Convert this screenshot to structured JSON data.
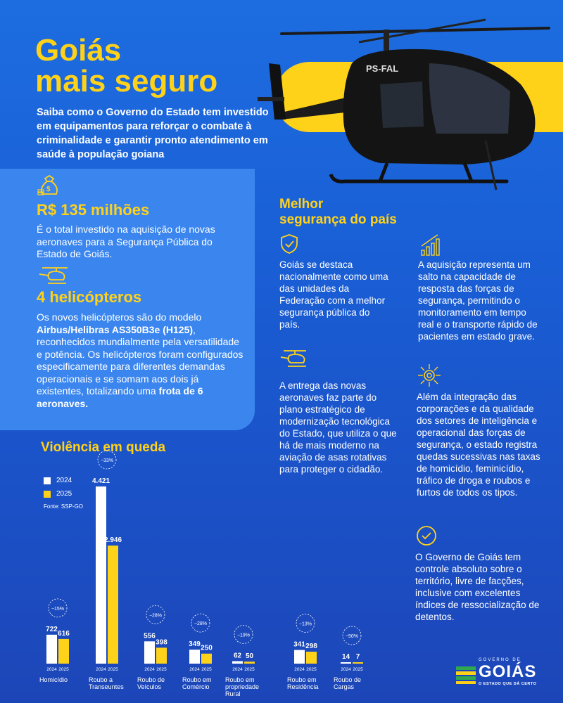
{
  "header": {
    "title_line1": "Goiás",
    "title_line2": "mais seguro",
    "subtitle": "Saiba como o Governo do Estado tem investido em equipamentos para reforçar o combate à criminalidade e garantir pronto atendimento em saúde à população goiana",
    "helicopter_registration": "PS-FAL"
  },
  "investment": {
    "value": "R$ 135 milhões",
    "text": "É o total investido na aquisição de novas aeronaves para a Segurança Pública do Estado de Goiás."
  },
  "helicopters": {
    "title": "4 helicópteros",
    "text_part1": "Os novos helicópteros são do modelo ",
    "model": "Airbus/Helibras AS350B3e (H125)",
    "text_part2": ", reconhecidos mundialmente pela versatilidade e potência. Os helicópteros foram configurados especificamente para diferentes demandas operacionais e se somam aos dois já existentes, totalizando uma ",
    "fleet": "frota de 6 aeronaves."
  },
  "security_section": {
    "title_line1": "Melhor",
    "title_line2": "segurança do país",
    "item1": "Goiás se destaca nacionalmente como uma das unidades da Federação com a melhor segurança pública do país.",
    "item2": "A aquisição representa um salto na capacidade de resposta das forças de segurança, permitindo o monitoramento em tempo real e o transporte rápido de pacientes em estado grave.",
    "item3": "A entrega das novas aeronaves faz parte do plano estratégico de modernização tecnológica do Estado, que utiliza o que há de mais moderno na aviação de asas rotativas para proteger o cidadão.",
    "item4": "Além da integração das corporações e da qualidade dos setores de inteligência e operacional das forças de segurança, o estado registra quedas sucessivas nas  taxas de homicídio, feminicídio, tráfico de droga e roubos e furtos de todos os tipos.",
    "item5": "O Governo de Goiás tem controle absoluto sobre o território, livre de facções, inclusive com excelentes índices de ressocialização de detentos."
  },
  "chart_data": {
    "type": "bar",
    "title": "Violência em queda",
    "source": "Fonte: SSP-GO",
    "categories": [
      "Homicídio",
      "Roubo a Transeuntes",
      "Roubo de Veículos",
      "Roubo em Comércio",
      "Roubo em propriedade Rural",
      "Roubo em Residência",
      "Roubo de Cargas"
    ],
    "category_lines": [
      [
        "Homicídio"
      ],
      [
        "Roubo a",
        "Transeuntes"
      ],
      [
        "Roubo de",
        "Veículos"
      ],
      [
        "Roubo em",
        "Comércio"
      ],
      [
        "Roubo em",
        "propriedade",
        "Rural"
      ],
      [
        "Roubo em",
        "Residência"
      ],
      [
        "Roubo de",
        "Cargas"
      ]
    ],
    "series": [
      {
        "name": "2024",
        "color": "#ffffff",
        "values": [
          722,
          4421,
          556,
          349,
          62,
          341,
          14
        ],
        "labels": [
          "722",
          "4.421",
          "556",
          "349",
          "62",
          "341",
          "14"
        ]
      },
      {
        "name": "2025",
        "color": "#ffd21a",
        "values": [
          616,
          2946,
          398,
          250,
          50,
          298,
          7
        ],
        "labels": [
          "616",
          "2.946",
          "398",
          "250",
          "50",
          "298",
          "7"
        ]
      }
    ],
    "changes": [
      "−15%",
      "−33%",
      "−28%",
      "−28%",
      "−19%",
      "−13%",
      "−50%"
    ],
    "year_labels": [
      "2024",
      "2025"
    ],
    "xlabel": "",
    "ylabel": "",
    "ylim": [
      0,
      4421
    ]
  },
  "logo": {
    "top": "GOVERNO DE",
    "main": "GOIÁS",
    "sub": "O ESTADO QUE DÁ CERTO"
  },
  "colors": {
    "accent": "#ffd21a",
    "background": "#1d6de0",
    "panel": "#3b86ee"
  }
}
